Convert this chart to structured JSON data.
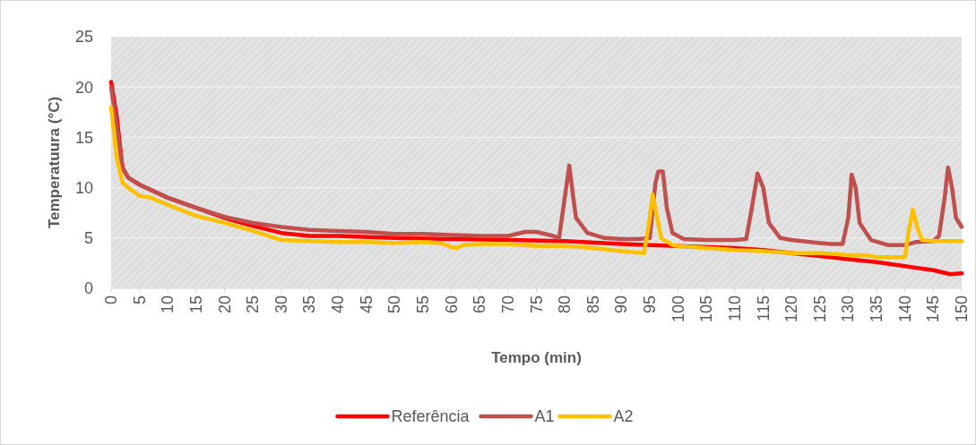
{
  "chart_data": {
    "type": "line",
    "xlabel": "Tempo (min)",
    "ylabel": "Temperatuura (°C)",
    "xlim": [
      0,
      150
    ],
    "xticks": [
      0,
      5,
      10,
      15,
      20,
      25,
      30,
      35,
      40,
      45,
      50,
      55,
      60,
      65,
      70,
      75,
      80,
      85,
      90,
      95,
      100,
      105,
      110,
      115,
      120,
      125,
      130,
      135,
      140,
      145,
      150
    ],
    "ylim": [
      0,
      25
    ],
    "yticks": [
      0,
      5,
      10,
      15,
      20,
      25
    ],
    "grid": "y",
    "legend": "bottom",
    "line_style": "solid",
    "marker": "none",
    "series": [
      {
        "name": "Referência",
        "color": "#ff0000",
        "x": [
          0,
          1,
          2,
          3,
          5,
          10,
          15,
          20,
          25,
          30,
          35,
          40,
          50,
          60,
          70,
          80,
          90,
          95,
          100,
          110,
          115,
          120,
          125,
          130,
          135,
          140,
          145,
          148,
          150
        ],
        "values": [
          20.5,
          17,
          12,
          11,
          10.3,
          9,
          8,
          7,
          6.2,
          5.5,
          5.2,
          5.2,
          5.0,
          4.9,
          4.8,
          4.7,
          4.4,
          4.3,
          4.2,
          4.0,
          3.8,
          3.5,
          3.2,
          2.9,
          2.6,
          2.2,
          1.8,
          1.4,
          1.5
        ]
      },
      {
        "name": "A1",
        "color": "#c0504d",
        "x": [
          0,
          1,
          2,
          3,
          5,
          10,
          15,
          20,
          25,
          30,
          35,
          40,
          45,
          50,
          55,
          60,
          65,
          70,
          73,
          75,
          78,
          79,
          80,
          80.8,
          81.5,
          82,
          84,
          87,
          90,
          93,
          95,
          96,
          96.5,
          97.3,
          98,
          99,
          101,
          105,
          110,
          112,
          113,
          114,
          115,
          116,
          118,
          120,
          125,
          127,
          129,
          130,
          130.6,
          131.3,
          132,
          134,
          137,
          140,
          142,
          145,
          146,
          147,
          147.6,
          148.3,
          149,
          150
        ],
        "values": [
          20,
          16,
          12,
          11,
          10.3,
          9,
          8,
          7.1,
          6.5,
          6.1,
          5.8,
          5.7,
          5.6,
          5.4,
          5.4,
          5.3,
          5.2,
          5.2,
          5.6,
          5.6,
          5.2,
          5.0,
          9,
          12.2,
          9,
          7,
          5.5,
          5.0,
          4.9,
          4.9,
          5.0,
          10.5,
          11.6,
          11.6,
          8,
          5.5,
          4.9,
          4.8,
          4.8,
          4.9,
          8,
          11.4,
          10,
          6.5,
          5,
          4.8,
          4.5,
          4.4,
          4.4,
          7,
          11.3,
          10,
          6.5,
          4.8,
          4.3,
          4.3,
          4.6,
          4.7,
          5.2,
          9,
          12,
          10,
          7,
          6.1
        ]
      },
      {
        "name": "A2",
        "color": "#ffc000",
        "x": [
          0,
          1,
          2,
          3,
          5,
          7,
          10,
          15,
          20,
          25,
          30,
          35,
          40,
          45,
          50,
          55,
          58,
          60,
          61,
          62,
          65,
          70,
          75,
          80,
          85,
          90,
          94,
          95,
          95.5,
          96.3,
          97,
          99,
          100,
          105,
          110,
          115,
          120,
          125,
          128,
          130,
          133,
          135,
          140,
          140.6,
          141.4,
          142.2,
          143,
          145,
          150
        ],
        "values": [
          18,
          13,
          10.5,
          10,
          9.2,
          9,
          8.3,
          7.2,
          6.5,
          5.7,
          4.8,
          4.7,
          4.6,
          4.6,
          4.5,
          4.6,
          4.5,
          4.1,
          4.0,
          4.3,
          4.4,
          4.4,
          4.2,
          4.2,
          4.0,
          3.7,
          3.5,
          7,
          9.3,
          7,
          5,
          4.3,
          4.2,
          4.0,
          3.8,
          3.7,
          3.5,
          3.5,
          3.4,
          3.3,
          3.3,
          3.1,
          3.1,
          5.5,
          7.8,
          6,
          4.8,
          4.7,
          4.7
        ]
      }
    ]
  }
}
